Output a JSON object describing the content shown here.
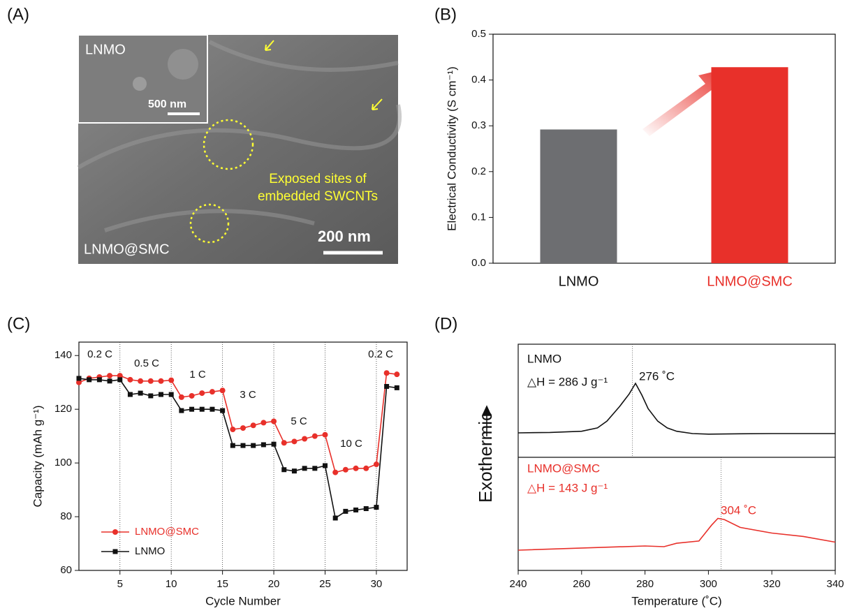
{
  "image": {
    "panel_label": "(A)",
    "inset_label": "LNMO",
    "inset_scale": "500 nm",
    "annotation": [
      "Exposed sites of",
      "embedded SWCNTs"
    ],
    "scale": "200 nm",
    "label": "LNMO@SMC"
  },
  "chart_data": [
    {
      "type": "bar",
      "panel_label": "(B)",
      "ylabel": "Electrical Conductivity (S cm⁻¹)",
      "categories": [
        "LNMO",
        "LNMO@SMC"
      ],
      "values": [
        0.292,
        0.428
      ],
      "colors": [
        "#6d6e71",
        "#e8302a"
      ],
      "ylim": [
        0,
        0.5
      ],
      "yticks": [
        {
          "value": 0,
          "label": "0.0"
        },
        0.1,
        0.2,
        0.3,
        0.4,
        0.5
      ]
    },
    {
      "type": "line",
      "panel_label": "(C)",
      "xlabel": "Cycle Number",
      "ylabel": "Capacity (mAh g⁻¹)",
      "x": [
        1,
        2,
        3,
        4,
        5,
        6,
        7,
        8,
        9,
        10,
        11,
        12,
        13,
        14,
        15,
        16,
        17,
        18,
        19,
        20,
        21,
        22,
        23,
        24,
        25,
        26,
        27,
        28,
        29,
        30,
        31,
        32
      ],
      "series": [
        {
          "name": "LNMO@SMC",
          "color": "#e8302a",
          "marker": "circle",
          "values": [
            130,
            131.5,
            132,
            132.5,
            132.5,
            131,
            130.5,
            130.5,
            130.5,
            130.8,
            124.5,
            125,
            126,
            126.5,
            127,
            112.5,
            113,
            114,
            115,
            115.5,
            107.5,
            108,
            109,
            110,
            110.5,
            96.5,
            97.5,
            98,
            98,
            99.5,
            133.5,
            133
          ]
        },
        {
          "name": "LNMO",
          "color": "#111111",
          "marker": "square",
          "values": [
            131.5,
            131,
            131,
            130.5,
            131,
            125.5,
            126,
            125,
            125.5,
            125.5,
            119.5,
            120,
            120,
            120,
            119.5,
            106.5,
            106.5,
            106.5,
            106.8,
            107,
            97.5,
            97,
            98,
            98,
            99,
            79.5,
            82,
            82.5,
            83,
            83.5,
            128.5,
            128
          ]
        }
      ],
      "separators": [
        5,
        10,
        15,
        20,
        25,
        30
      ],
      "rate_labels": [
        "0.2 C",
        "0.5 C",
        "1 C",
        "3 C",
        "5 C",
        "10 C",
        "0.2 C"
      ],
      "xlim": [
        1,
        33
      ],
      "xticks": [
        5,
        10,
        15,
        20,
        25,
        30
      ],
      "ylim": [
        60,
        145
      ],
      "yticks": [
        60,
        80,
        100,
        120,
        140
      ],
      "legend": "lower left"
    },
    {
      "type": "line",
      "panel_label": "(D)",
      "xlabel": "Temperature (˚C)",
      "ylabel": "Exothermic",
      "series": [
        {
          "name": "LNMO",
          "color": "#111111",
          "x": [
            240,
            250,
            260,
            265,
            268,
            272,
            275,
            277,
            279,
            281,
            284,
            287,
            290,
            295,
            300,
            310,
            320,
            340
          ],
          "values": [
            1.216,
            1.22,
            1.23,
            1.26,
            1.32,
            1.45,
            1.56,
            1.654,
            1.55,
            1.43,
            1.32,
            1.26,
            1.23,
            1.21,
            1.205,
            1.208,
            1.21,
            1.21
          ]
        },
        {
          "name": "LNMO@SMC",
          "color": "#e8302a",
          "x": [
            240,
            280,
            286,
            290,
            297,
            301,
            303,
            305,
            310,
            320,
            330,
            340
          ],
          "values": [
            0.179,
            0.216,
            0.21,
            0.24,
            0.26,
            0.4,
            0.46,
            0.45,
            0.38,
            0.33,
            0.3,
            0.25
          ]
        }
      ],
      "peaks": [
        276,
        304
      ],
      "annotations": [
        {
          "text": "LNMO",
          "color": "#111111"
        },
        {
          "text": "△H = 286 J g⁻¹",
          "color": "#111111"
        },
        {
          "text": "276 ˚C",
          "color": "#111111"
        },
        {
          "text": "LNMO@SMC",
          "color": "#e8302a"
        },
        {
          "text": "△H = 143 J g⁻¹",
          "color": "#e8302a"
        },
        {
          "text": "304 ˚C",
          "color": "#e8302a"
        }
      ],
      "xlim": [
        240,
        340
      ],
      "xticks": [
        240,
        260,
        280,
        300,
        320,
        340
      ],
      "ylim": [
        0,
        2
      ]
    }
  ]
}
